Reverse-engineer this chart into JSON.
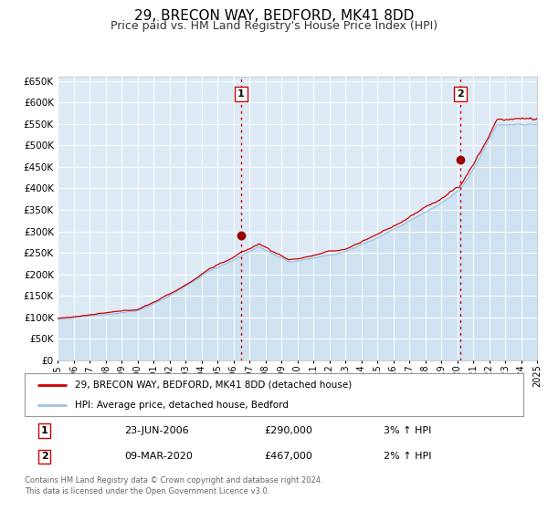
{
  "title": "29, BRECON WAY, BEDFORD, MK41 8DD",
  "subtitle": "Price paid vs. HM Land Registry's House Price Index (HPI)",
  "title_fontsize": 11,
  "subtitle_fontsize": 9,
  "background_color": "#ddeaf5",
  "fig_bg_color": "#ffffff",
  "hpi_color": "#a0c0e0",
  "hpi_fill_color": "#c8dff0",
  "price_color": "#cc0000",
  "marker_color": "#990000",
  "vline_color": "#cc0000",
  "ylim": [
    0,
    660000
  ],
  "ytick_step": 50000,
  "xmin": 1995,
  "xmax": 2025,
  "legend_label_red": "29, BRECON WAY, BEDFORD, MK41 8DD (detached house)",
  "legend_label_blue": "HPI: Average price, detached house, Bedford",
  "annotation1": {
    "num": "1",
    "date": "23-JUN-2006",
    "price": "£290,000",
    "change": "3% ↑ HPI",
    "x": 2006.48
  },
  "annotation2": {
    "num": "2",
    "date": "09-MAR-2020",
    "price": "£467,000",
    "change": "2% ↑ HPI",
    "x": 2020.19
  },
  "footer": "Contains HM Land Registry data © Crown copyright and database right 2024.\nThis data is licensed under the Open Government Licence v3.0.",
  "grid_color": "#ffffff",
  "grid_linewidth": 0.8,
  "ann1_y": 290000,
  "ann2_y": 467000
}
